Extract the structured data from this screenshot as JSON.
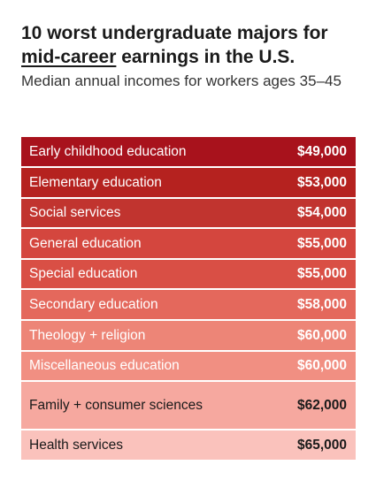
{
  "header": {
    "title_part1": "10 worst undergraduate majors for",
    "title_emph": "mid-career",
    "title_part2": "earnings in the U.S.",
    "subtitle": "Median annual incomes for workers ages 35–45"
  },
  "chart_data": {
    "type": "table",
    "title": "10 worst undergraduate majors for mid-career earnings in the U.S.",
    "subtitle": "Median annual incomes for workers ages 35–45",
    "categories": [
      "Early childhood education",
      "Elementary education",
      "Social services",
      "General education",
      "Special education",
      "Secondary education",
      "Theology + religion",
      "Miscellaneous education",
      "Family + consumer sciences",
      "Health services"
    ],
    "values": [
      49000,
      53000,
      54000,
      55000,
      55000,
      58000,
      60000,
      60000,
      62000,
      65000
    ],
    "value_labels": [
      "$49,000",
      "$53,000",
      "$54,000",
      "$55,000",
      "$55,000",
      "$58,000",
      "$60,000",
      "$60,000",
      "$62,000",
      "$65,000"
    ],
    "row_colors": [
      "#a8121c",
      "#b5221f",
      "#c1342f",
      "#d4463e",
      "#d94f45",
      "#e4685c",
      "#ed8577",
      "#f18f82",
      "#f6a89f",
      "#fac2bc"
    ],
    "text_colors": [
      "#ffffff",
      "#ffffff",
      "#ffffff",
      "#ffffff",
      "#ffffff",
      "#ffffff",
      "#ffffff",
      "#ffffff",
      "#1a1a1a",
      "#1a1a1a"
    ]
  }
}
